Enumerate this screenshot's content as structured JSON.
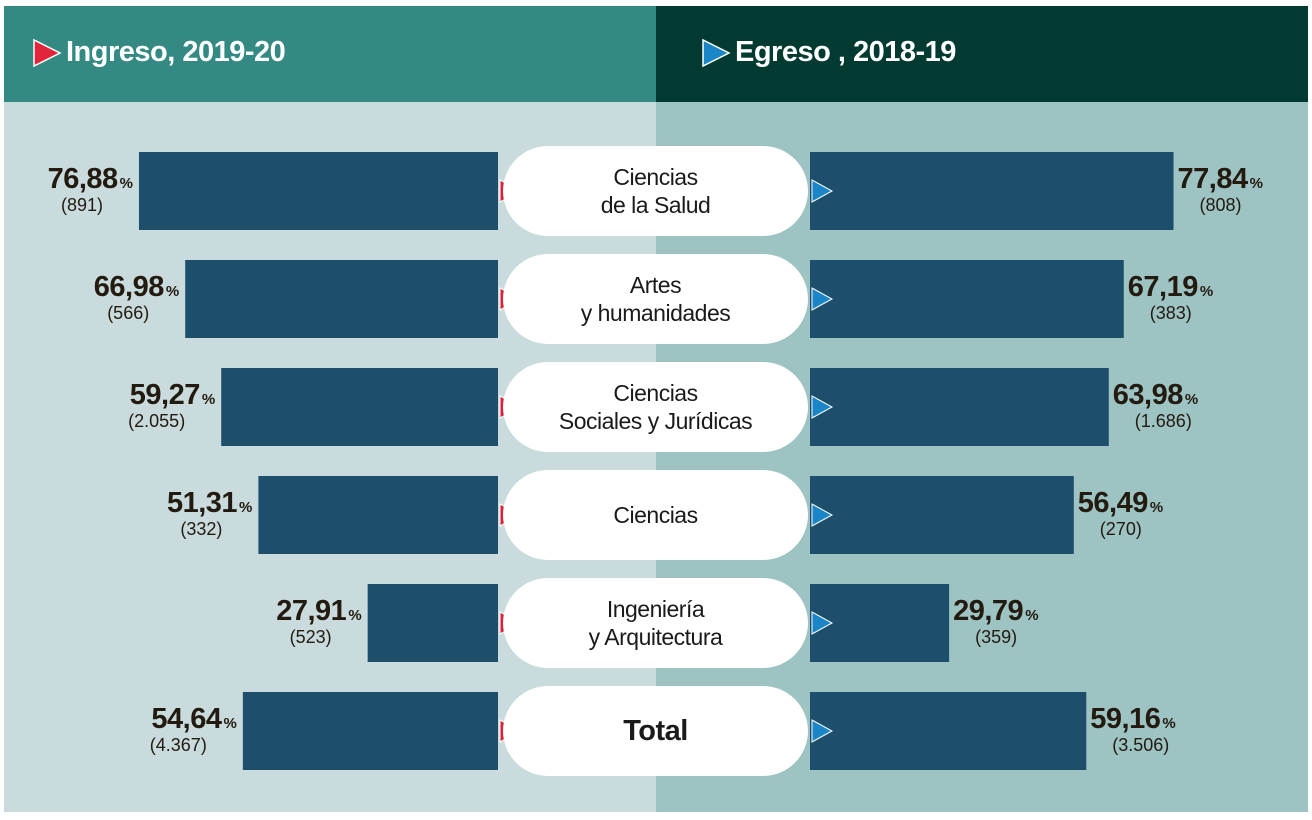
{
  "chart_data": {
    "type": "butterfly-bar",
    "categories": [
      "Ciencias\nde la Salud",
      "Artes\ny humanidades",
      "Ciencias\nSociales y Jurídicas",
      "Ciencias",
      "Ingeniería\ny Arquitectura",
      "Total"
    ],
    "unit": "%",
    "xlim": [
      0,
      100
    ],
    "series": [
      {
        "name": "Ingreso, 2019-20",
        "color": "#1d4f6c",
        "arrow_color": "#d8213a",
        "values": [
          76.88,
          66.98,
          59.27,
          51.31,
          27.91,
          54.64
        ],
        "value_labels": [
          "76,88",
          "66,98",
          "59,27",
          "51,31",
          "27,91",
          "54,64"
        ],
        "count_labels": [
          "(891)",
          "(566)",
          "(2.055)",
          "(332)",
          "(523)",
          "(4.367)"
        ]
      },
      {
        "name": "Egreso , 2018-19",
        "color": "#1d4f6c",
        "arrow_color": "#1a86c8",
        "values": [
          77.84,
          67.19,
          63.98,
          56.49,
          29.79,
          59.16
        ],
        "value_labels": [
          "77,84",
          "67,19",
          "63,98",
          "56,49",
          "29,79",
          "59,16"
        ],
        "count_labels": [
          "(808)",
          "(383)",
          "(1.686)",
          "(270)",
          "(359)",
          "(3.506)"
        ]
      }
    ]
  }
}
